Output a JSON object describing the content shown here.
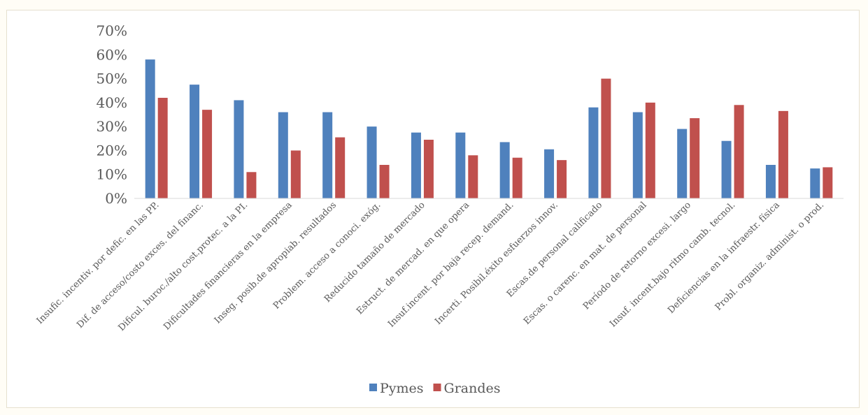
{
  "chart_data": {
    "type": "bar",
    "categories": [
      "Insufic. incentiv. por defic. en las PP.",
      "Dif. de acceso/costo exces. del financ.",
      "Dificul. buroc./alto cost.protec. a la PI.",
      "Dificultades financieras en la empresa",
      "Inseg. posib.de apropiab. resultados",
      "Problem. acceso a conoci. exóg.",
      "Reducido tamaño de mercado",
      "Estruct. de mercad. en que opera",
      "Insuf.incent. por baja recep. demand.",
      "Incerti. Posibil.éxito esfuerzos innov.",
      "Escas.de personal calificado",
      "Escas. o carenc. en mat. de personal",
      "Período de retorno excesi. largo",
      "Insuf. incent.bajo ritmo camb. tecnol.",
      "Deficiencias en la infraestr. física",
      "Probl. organiz. administ. o prod."
    ],
    "series": [
      {
        "name": "Pymes",
        "color": "#4f81bd",
        "values": [
          58,
          47.5,
          41,
          36,
          36,
          30,
          27.5,
          27.5,
          23.5,
          20.5,
          38,
          36,
          29,
          24,
          14,
          12.5
        ]
      },
      {
        "name": "Grandes",
        "color": "#c0504d",
        "values": [
          42,
          37,
          11,
          20,
          25.5,
          14,
          24.5,
          18,
          17,
          16,
          50,
          40,
          33.5,
          39,
          36.5,
          13
        ]
      }
    ],
    "yticks": [
      "0%",
      "10%",
      "20%",
      "30%",
      "40%",
      "50%",
      "60%",
      "70%"
    ],
    "ylim": [
      0,
      70
    ],
    "grid": false,
    "legend": "bottom"
  }
}
